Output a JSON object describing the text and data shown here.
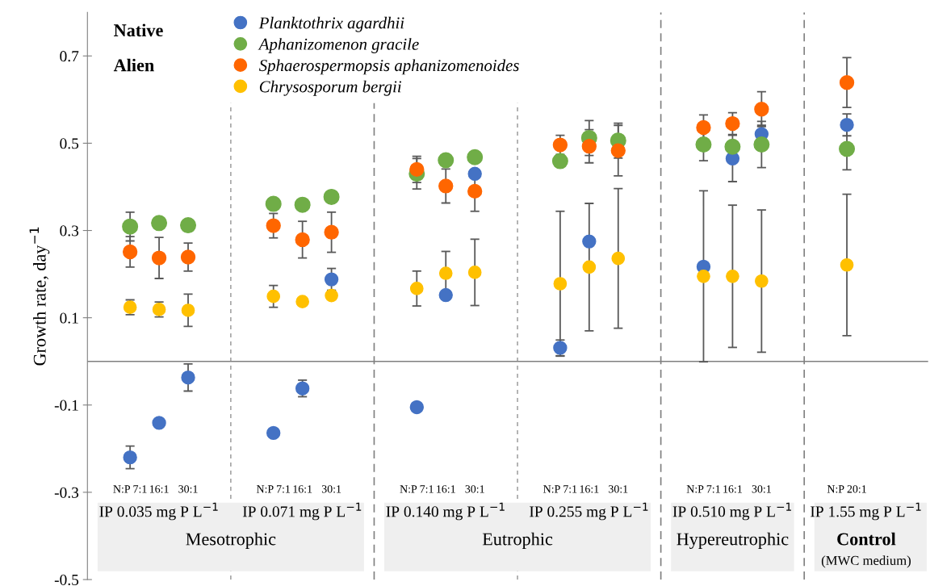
{
  "chart_data": {
    "type": "scatter",
    "ylabel": "Growth rate, day$^{−1}$",
    "categories": [
      "N:P 7:1",
      "16:1",
      "30:1",
      "N:P 7:1",
      "16:1",
      "30:1",
      "N:P 7:1",
      "16:1",
      "30:1",
      "N:P 7:1",
      "16:1",
      "30:1",
      "N:P 7:1",
      "16:1",
      "30:1",
      "N:P 20:1"
    ],
    "ylim": [
      -0.5,
      0.8
    ],
    "yticks": [
      -0.5,
      -0.3,
      -0.1,
      0.1,
      0.3,
      0.5,
      0.7
    ],
    "grid": false,
    "legend": "top left",
    "marker": "circle",
    "series": [
      {
        "name": "Planktothrix agardhii",
        "color": "#4472c4",
        "values": [
          -0.22,
          -0.141,
          -0.037,
          -0.164,
          -0.062,
          0.188,
          -0.105,
          0.152,
          0.43,
          0.031,
          0.275,
          null,
          0.217,
          0.465,
          0.521,
          0.542
        ],
        "errors": [
          0.026,
          null,
          0.031,
          null,
          0.019,
          0.025,
          null,
          null,
          null,
          0.018,
          null,
          null,
          null,
          0.053,
          0.02,
          0.025
        ]
      },
      {
        "name": "Aphanizomenon gracile",
        "color": "#70ad47",
        "values": [
          0.309,
          0.317,
          0.312,
          0.361,
          0.359,
          0.377,
          0.43,
          0.461,
          0.468,
          0.459,
          0.512,
          0.506,
          0.497,
          0.492,
          0.497,
          0.487
        ],
        "errors": [
          0.033,
          null,
          null,
          null,
          null,
          null,
          0.035,
          null,
          null,
          null,
          0.04,
          0.04,
          0.037,
          null,
          0.053,
          0.048
        ]
      },
      {
        "name": "Sphaerospermopsis aphanizomenoides",
        "color": "#ff6600",
        "values": [
          0.251,
          0.237,
          0.239,
          0.311,
          0.279,
          0.296,
          0.44,
          0.402,
          0.39,
          0.496,
          0.493,
          0.483,
          0.536,
          0.545,
          0.578,
          0.639
        ],
        "errors": [
          0.035,
          0.047,
          0.032,
          0.028,
          0.042,
          0.046,
          0.03,
          0.039,
          0.046,
          0.022,
          0.038,
          0.058,
          0.029,
          0.025,
          0.04,
          0.057
        ]
      },
      {
        "name": "Chrysosporum bergii",
        "color": "#ffc000",
        "values": [
          0.124,
          0.119,
          0.117,
          0.149,
          0.137,
          0.151,
          0.167,
          0.202,
          0.204,
          0.178,
          0.216,
          0.236,
          0.195,
          0.195,
          0.184,
          0.221
        ],
        "errors": [
          0.017,
          0.017,
          0.037,
          0.025,
          null,
          null,
          0.04,
          0.05,
          0.076,
          0.166,
          0.146,
          0.16,
          0.196,
          0.163,
          0.163,
          0.162
        ]
      }
    ],
    "annotations": [
      "Native",
      "Alien",
      "IP 0.035 mg P L$^{−1}$",
      "IP 0.071 mg P L$^{−1}$",
      "IP 0.140 mg P L$^{−1}$",
      "IP 0.255 mg P L$^{−1}$",
      "IP 0.510 mg P L$^{−1}$",
      "IP 1.55 mg P L$^{−1}$",
      "Mesotrophic",
      "Eutrophic",
      "Hypereutrophic",
      "Control",
      "(MWC medium)"
    ]
  }
}
